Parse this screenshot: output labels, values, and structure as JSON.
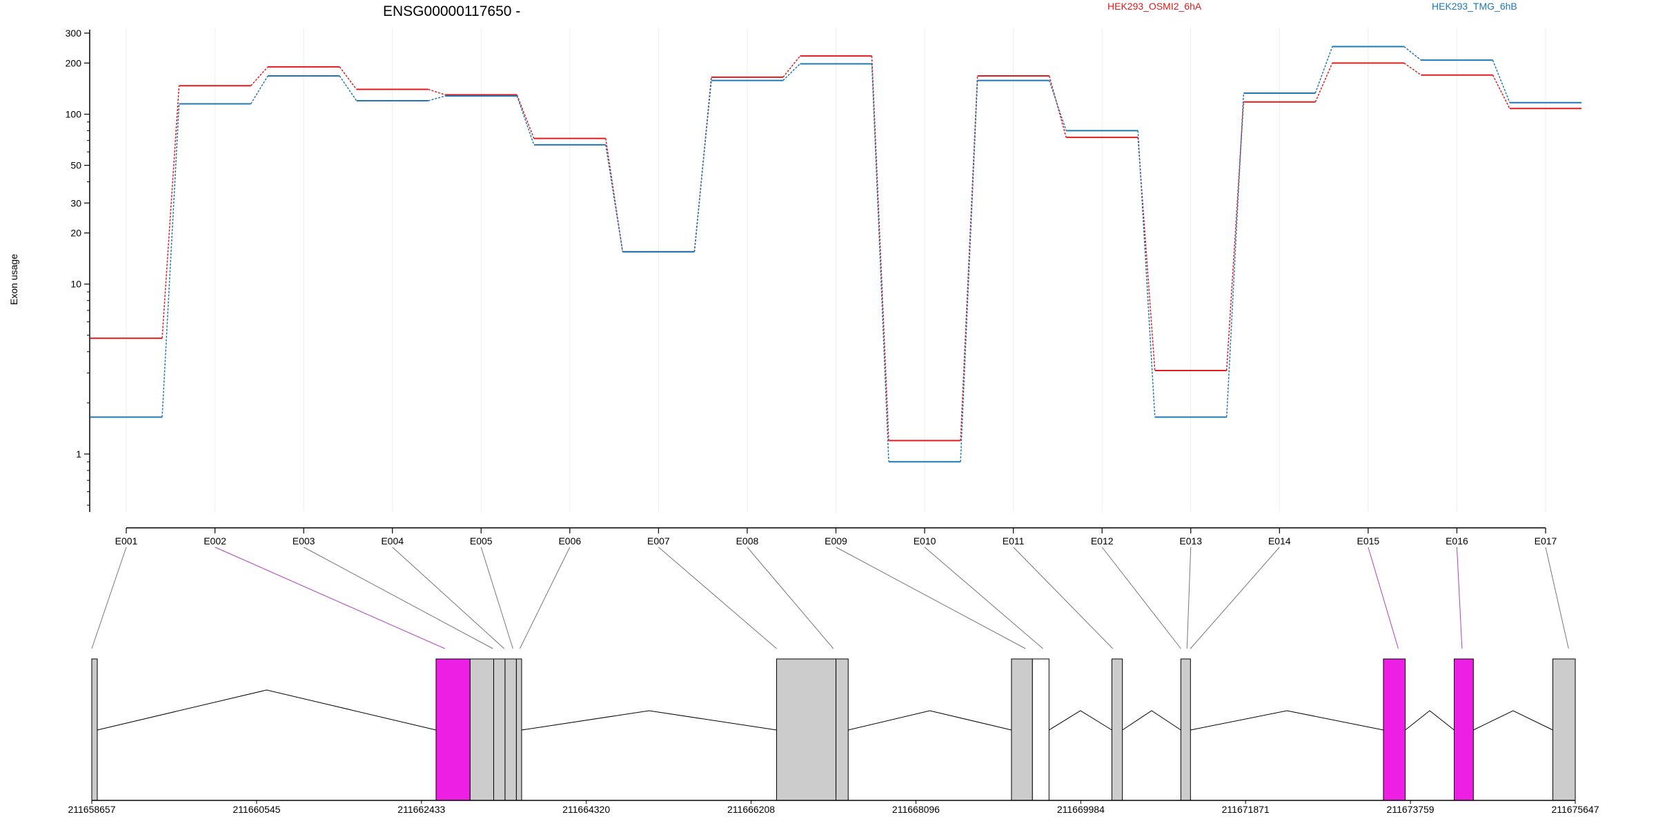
{
  "chart_data": {
    "type": "line",
    "title": "ENSG00000117650 -",
    "ylabel": "Exon usage",
    "y_scale": "log",
    "ylim": [
      0.4,
      300
    ],
    "y_ticks": [
      1,
      10,
      20,
      30,
      50,
      100,
      200,
      300
    ],
    "grid": "vertical",
    "legend_placement": "top",
    "categories": [
      "E001",
      "E002",
      "E003",
      "E004",
      "E005",
      "E006",
      "E007",
      "E008",
      "E009",
      "E010",
      "E011",
      "E012",
      "E013",
      "E014",
      "E015",
      "E016",
      "E017"
    ],
    "series": [
      {
        "name": "HEK293_OSMI2_6hA",
        "color": "#e31a1c",
        "values": [
          4.8,
          147,
          190,
          140,
          130,
          72,
          15.5,
          165,
          220,
          1.2,
          168,
          73,
          3.1,
          118,
          200,
          170,
          108
        ]
      },
      {
        "name": "HEK293_TMG_6hB",
        "color": "#1f78b4",
        "values": [
          1.65,
          115,
          168,
          120,
          128,
          66,
          15.5,
          158,
          198,
          0.9,
          158,
          80,
          1.65,
          133,
          250,
          208,
          117
        ]
      }
    ],
    "gene_model": {
      "coord_ticks": [
        "211658657",
        "211660545",
        "211662433",
        "211664320",
        "211666208",
        "211668096",
        "211669984",
        "211671871",
        "211673759",
        "211675647"
      ],
      "highlight_color": "#ee1fe4",
      "exon_color": "#cccccc",
      "highlighted_exons": [
        "E002",
        "E015",
        "E016"
      ]
    }
  }
}
